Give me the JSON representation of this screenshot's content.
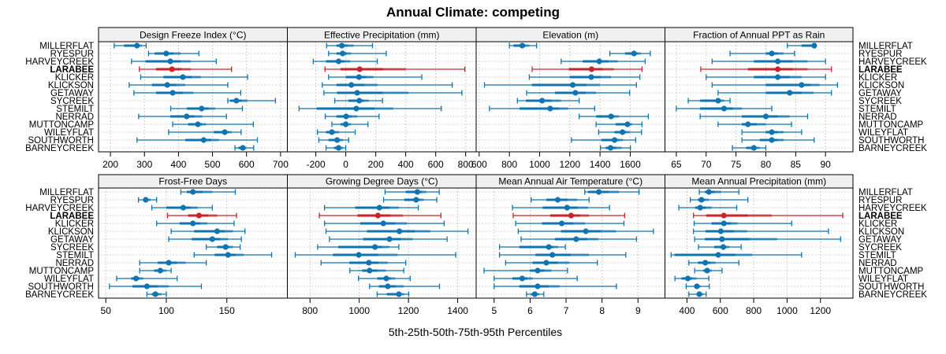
{
  "chart_data": {
    "type": "dotplot-percentile",
    "title": "Annual Climate: competing",
    "xlabel": "5th-25th-50th-75th-95th Percentiles",
    "highlight_category": "LARABEE",
    "colors": {
      "default": "#0f74b0",
      "highlight": "#c4262c",
      "strip_bg": "#f0f0f0"
    },
    "categories": [
      "MILLERFLAT",
      "RYESPUR",
      "HARVEYCREEK",
      "LARABEE",
      "KLICKER",
      "KLICKSON",
      "GETAWAY",
      "SYCREEK",
      "STEMILT",
      "NERRAD",
      "MUTTONCAMP",
      "WILEYFLAT",
      "SOUTHWORTH",
      "BARNEYCREEK"
    ],
    "percentile_order": [
      "p5",
      "p25",
      "p50",
      "p75",
      "p95"
    ],
    "panels": [
      {
        "title": "Design Freeze Index (°C)",
        "xlim": [
          165,
          720
        ],
        "ticks": [
          200,
          300,
          400,
          500,
          600,
          700
        ],
        "values": [
          [
            211,
            240,
            278,
            292,
            305
          ],
          [
            312,
            330,
            364,
            406,
            460
          ],
          [
            262,
            303,
            376,
            436,
            511
          ],
          [
            285,
            334,
            381,
            436,
            556
          ],
          [
            289,
            356,
            413,
            466,
            603
          ],
          [
            255,
            322,
            367,
            420,
            545
          ],
          [
            269,
            334,
            383,
            444,
            583
          ],
          [
            545,
            552,
            570,
            602,
            685
          ],
          [
            377,
            425,
            468,
            508,
            588
          ],
          [
            283,
            376,
            424,
            470,
            541
          ],
          [
            383,
            428,
            457,
            481,
            620
          ],
          [
            371,
            504,
            536,
            556,
            584
          ],
          [
            278,
            420,
            474,
            519,
            632
          ],
          [
            566,
            576,
            589,
            599,
            621
          ]
        ]
      },
      {
        "title": "Effective Precipitation (mm)",
        "xlim": [
          -390,
          870
        ],
        "ticks": [
          -200,
          0,
          200,
          400,
          600,
          800
        ],
        "values": [
          [
            -128,
            -62,
            -26,
            53,
            178
          ],
          [
            -115,
            -62,
            -21,
            35,
            270
          ],
          [
            -217,
            -132,
            -48,
            30,
            210
          ],
          [
            -139,
            -35,
            93,
            400,
            795
          ],
          [
            -115,
            0,
            88,
            185,
            507
          ],
          [
            -157,
            -62,
            37,
            211,
            710
          ],
          [
            -146,
            -58,
            76,
            418,
            775
          ],
          [
            -74,
            18,
            90,
            153,
            245
          ],
          [
            -312,
            -194,
            70,
            317,
            637
          ],
          [
            -137,
            -62,
            2,
            76,
            222
          ],
          [
            -93,
            -35,
            0,
            35,
            148
          ],
          [
            -189,
            -132,
            -93,
            -44,
            63
          ],
          [
            -180,
            -115,
            -58,
            -18,
            19
          ],
          [
            -132,
            -79,
            -48,
            -18,
            0
          ]
        ]
      },
      {
        "title": "Elevation (m)",
        "xlim": [
          580,
          1830
        ],
        "ticks": [
          600,
          800,
          1000,
          1200,
          1400,
          1600
        ],
        "values": [
          [
            800,
            827,
            885,
            932,
            980
          ],
          [
            1465,
            1566,
            1625,
            1670,
            1733
          ],
          [
            1143,
            1286,
            1395,
            1517,
            1699
          ],
          [
            951,
            1194,
            1344,
            1491,
            1678
          ],
          [
            932,
            1199,
            1342,
            1473,
            1664
          ],
          [
            635,
            949,
            1220,
            1398,
            1641
          ],
          [
            914,
            1103,
            1237,
            1374,
            1596
          ],
          [
            853,
            909,
            1017,
            1141,
            1262
          ],
          [
            668,
            867,
            1070,
            1189,
            1365
          ],
          [
            1262,
            1374,
            1473,
            1526,
            1720
          ],
          [
            1374,
            1503,
            1582,
            1613,
            1678
          ],
          [
            1391,
            1496,
            1549,
            1596,
            1675
          ],
          [
            1211,
            1409,
            1496,
            1552,
            1636
          ],
          [
            1403,
            1438,
            1470,
            1543,
            1601
          ]
        ]
      },
      {
        "title": "Fraction of Annual PPT as Rain",
        "xlim": [
          63.1,
          94.6
        ],
        "ticks": [
          65,
          70,
          75,
          80,
          85,
          90
        ],
        "values": [
          [
            83.6,
            86.0,
            88.1,
            88.2,
            88.3
          ],
          [
            74.0,
            80.0,
            81.0,
            83.0,
            84.8
          ],
          [
            71.0,
            78.0,
            82.0,
            87.0,
            90.0
          ],
          [
            69.1,
            77.0,
            82.0,
            87.0,
            91.0
          ],
          [
            70.0,
            78.0,
            82.0,
            86.0,
            90.0
          ],
          [
            71.0,
            80.0,
            86.0,
            89.0,
            92.0
          ],
          [
            72.0,
            80.0,
            84.0,
            88.0,
            91.0
          ],
          [
            67.0,
            69.0,
            72.0,
            73.0,
            74.0
          ],
          [
            65.0,
            69.0,
            73.0,
            76.0,
            81.0
          ],
          [
            69.0,
            76.0,
            80.0,
            84.0,
            87.0
          ],
          [
            72.0,
            76.0,
            77.0,
            80.0,
            84.3
          ],
          [
            76.0,
            80.0,
            81.0,
            83.0,
            86.0
          ],
          [
            76.0,
            79.0,
            81.0,
            83.0,
            88.1
          ],
          [
            74.4,
            76.7,
            78.0,
            79.0,
            80.0
          ]
        ]
      },
      {
        "title": "Frost-Free Days",
        "xlim": [
          44,
          200
        ],
        "ticks": [
          50,
          100,
          150
        ],
        "values": [
          [
            112,
            117,
            122,
            138,
            157
          ],
          [
            77,
            81,
            83,
            87,
            92
          ],
          [
            88,
            100,
            114,
            126,
            138
          ],
          [
            101,
            118,
            127,
            142,
            158
          ],
          [
            92,
            111,
            122,
            134,
            156
          ],
          [
            104,
            123,
            142,
            155,
            165
          ],
          [
            102,
            121,
            138,
            151,
            162
          ],
          [
            133,
            142,
            149,
            155,
            161
          ],
          [
            123,
            140,
            151,
            164,
            187
          ],
          [
            78,
            93,
            102,
            116,
            133
          ],
          [
            78,
            90,
            95,
            100,
            104
          ],
          [
            59,
            71,
            75,
            81,
            109
          ],
          [
            53,
            72,
            84,
            102,
            129
          ],
          [
            84,
            88,
            91,
            96,
            100
          ]
        ]
      },
      {
        "title": "Growing Degree Days (°C)",
        "xlim": [
          708,
          1475
        ],
        "ticks": [
          800,
          1000,
          1200,
          1400
        ],
        "values": [
          [
            1105,
            1189,
            1236,
            1273,
            1325
          ],
          [
            1099,
            1183,
            1231,
            1262,
            1315
          ],
          [
            859,
            984,
            1082,
            1161,
            1240
          ],
          [
            838,
            993,
            1076,
            1178,
            1332
          ],
          [
            859,
            1004,
            1098,
            1194,
            1345
          ],
          [
            865,
            1032,
            1163,
            1289,
            1442
          ],
          [
            879,
            1016,
            1123,
            1217,
            1357
          ],
          [
            831,
            915,
            1064,
            1122,
            1161
          ],
          [
            740,
            893,
            998,
            1156,
            1392
          ],
          [
            845,
            960,
            1039,
            1116,
            1189
          ],
          [
            962,
            1012,
            1042,
            1108,
            1181
          ],
          [
            997,
            1073,
            1110,
            1146,
            1207
          ],
          [
            1042,
            1080,
            1116,
            1181,
            1326
          ],
          [
            1073,
            1112,
            1161,
            1183,
            1201
          ]
        ]
      },
      {
        "title": "Mean Annual Air Temperature (°C)",
        "xlim": [
          4.5,
          9.75
        ],
        "ticks": [
          5,
          6,
          7,
          8,
          9
        ],
        "values": [
          [
            7.52,
            7.61,
            7.91,
            8.47,
            9.03
          ],
          [
            6.03,
            6.45,
            6.77,
            7.31,
            7.64
          ],
          [
            5.51,
            6.35,
            7.03,
            7.61,
            8.21
          ],
          [
            5.53,
            6.56,
            7.14,
            7.64,
            8.63
          ],
          [
            5.6,
            6.33,
            6.88,
            7.53,
            8.61
          ],
          [
            5.67,
            6.86,
            7.55,
            8.39,
            9.43
          ],
          [
            5.75,
            6.69,
            7.28,
            7.9,
            8.96
          ],
          [
            5.15,
            5.7,
            6.52,
            6.78,
            6.98
          ],
          [
            5.15,
            6.15,
            6.62,
            7.64,
            8.66
          ],
          [
            5.32,
            6.07,
            6.45,
            7.09,
            7.87
          ],
          [
            4.72,
            5.99,
            6.21,
            6.59,
            7.04
          ],
          [
            5.0,
            5.51,
            5.78,
            6.07,
            7.31
          ],
          [
            5.0,
            5.7,
            6.21,
            6.82,
            8.4
          ],
          [
            5.9,
            6.03,
            6.13,
            6.26,
            6.38
          ]
        ]
      },
      {
        "title": "Mean Annual Precipitation (mm)",
        "xlim": [
          268,
          1395
        ],
        "ticks": [
          400,
          600,
          800,
          1000,
          1200
        ],
        "values": [
          [
            474,
            507,
            531,
            605,
            711
          ],
          [
            420,
            466,
            487,
            531,
            765
          ],
          [
            351,
            449,
            479,
            548,
            698
          ],
          [
            439,
            515,
            621,
            908,
            1334
          ],
          [
            443,
            548,
            621,
            703,
            1028
          ],
          [
            439,
            511,
            603,
            761,
            1248
          ],
          [
            446,
            507,
            610,
            941,
            1321
          ],
          [
            469,
            564,
            618,
            654,
            725
          ],
          [
            305,
            326,
            587,
            792,
            1087
          ],
          [
            411,
            466,
            510,
            572,
            711
          ],
          [
            446,
            498,
            521,
            548,
            610
          ],
          [
            328,
            367,
            405,
            457,
            531
          ],
          [
            395,
            446,
            459,
            482,
            534
          ],
          [
            411,
            457,
            474,
            498,
            515
          ]
        ]
      }
    ]
  }
}
